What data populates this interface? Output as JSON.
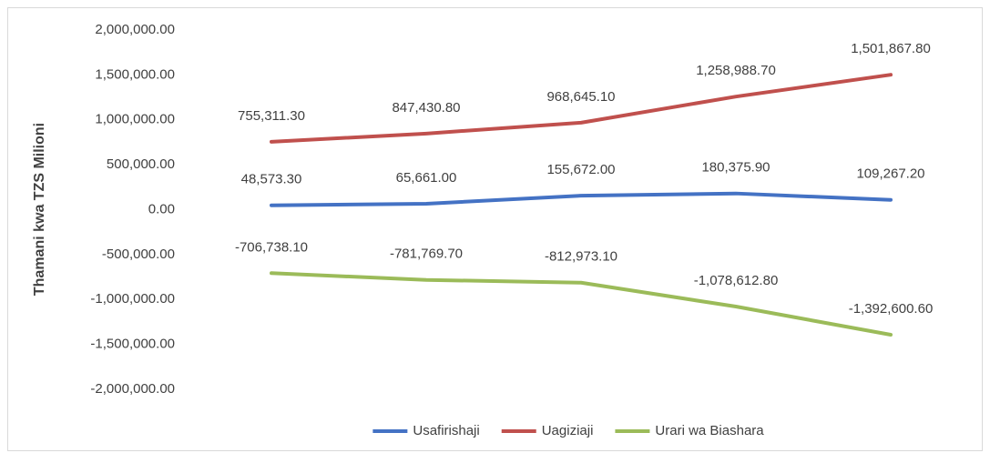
{
  "chart_data": {
    "type": "line",
    "y_label": "Thamani kwa TZS Milioni",
    "categories": [
      null,
      null,
      null,
      null,
      null
    ],
    "series": [
      {
        "name": "Usafirishaji",
        "color": "#4472c4",
        "values": [
          48573.3,
          65661.0,
          155672.0,
          180375.9,
          109267.2
        ],
        "value_labels": [
          "48,573.30",
          "65,661.00",
          "155,672.00",
          "180,375.90",
          "109,267.20"
        ]
      },
      {
        "name": "Uagiziaji",
        "color": "#c0504d",
        "values": [
          755311.3,
          847430.8,
          968645.1,
          1258988.7,
          1501867.8
        ],
        "value_labels": [
          "755,311.30",
          "847,430.80",
          "968,645.10",
          "1,258,988.70",
          "1,501,867.80"
        ]
      },
      {
        "name": "Urari wa Biashara",
        "color": "#9bbb59",
        "values": [
          -706738.1,
          -781769.7,
          -812973.1,
          -1078612.8,
          -1392600.6
        ],
        "value_labels": [
          "-706,738.10",
          "-781,769.70",
          "-812,973.10",
          "-1,078,612.80",
          "-1,392,600.60"
        ]
      }
    ],
    "ylim": [
      -2000000,
      2000000
    ],
    "yticks": [
      {
        "value": 2000000,
        "label": "2,000,000.00"
      },
      {
        "value": 1500000,
        "label": "1,500,000.00"
      },
      {
        "value": 1000000,
        "label": "1,000,000.00"
      },
      {
        "value": 500000,
        "label": "500,000.00"
      },
      {
        "value": 0,
        "label": "0.00"
      },
      {
        "value": -500000,
        "label": "-500,000.00"
      },
      {
        "value": -1000000,
        "label": "-1,000,000.00"
      },
      {
        "value": -1500000,
        "label": "-1,500,000.00"
      },
      {
        "value": -2000000,
        "label": "-2,000,000.00"
      }
    ],
    "legend": "bottom"
  }
}
